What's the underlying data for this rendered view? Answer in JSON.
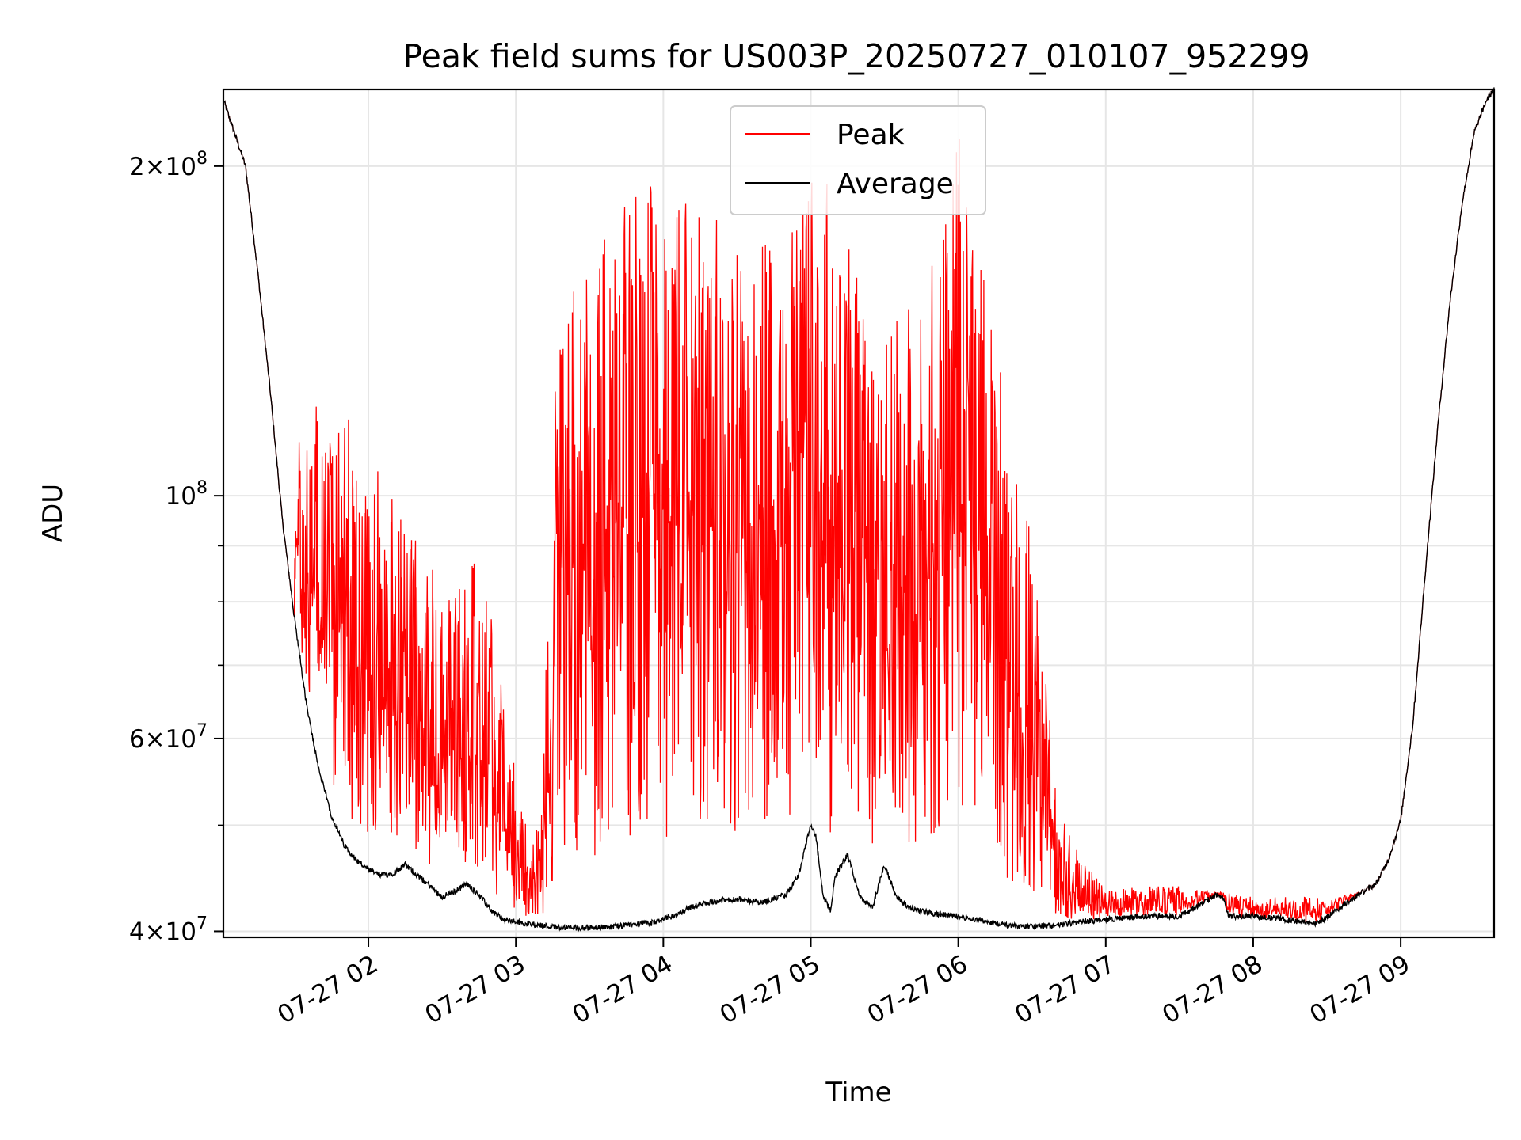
{
  "chart_data": {
    "type": "line",
    "title": "Peak field sums for US003P_20250727_010107_952299",
    "xlabel": "Time",
    "ylabel": "ADU",
    "x_range": [
      "2025-07-27 01:01",
      "2025-07-27 09:38"
    ],
    "y_scale": "log",
    "ylim": [
      39500000,
      235000000
    ],
    "grid": true,
    "legend": {
      "placement": "top-center",
      "entries": [
        "Peak",
        "Average"
      ]
    },
    "x_ticks": [
      "07-27 02",
      "07-27 03",
      "07-27 04",
      "07-27 05",
      "07-27 06",
      "07-27 07",
      "07-27 08",
      "07-27 09"
    ],
    "y_major_ticks": [
      {
        "value": 40000000,
        "mantissa": "4",
        "exponent": "7"
      },
      {
        "value": 60000000,
        "mantissa": "6",
        "exponent": "7"
      },
      {
        "value": 100000000,
        "mantissa": "",
        "exponent": "8"
      },
      {
        "value": 200000000,
        "mantissa": "2",
        "exponent": "8"
      }
    ],
    "y_minor_ticks": [
      50000000,
      70000000,
      80000000,
      90000000
    ],
    "series": [
      {
        "name": "Average",
        "color": "#000000",
        "x": [
          "01:01",
          "01:10",
          "01:15",
          "01:20",
          "01:25",
          "01:30",
          "01:35",
          "01:40",
          "01:45",
          "01:50",
          "01:55",
          "02:00",
          "02:05",
          "02:10",
          "02:15",
          "02:20",
          "02:25",
          "02:30",
          "02:35",
          "02:40",
          "02:45",
          "02:50",
          "02:55",
          "03:00",
          "03:10",
          "03:20",
          "03:30",
          "03:40",
          "03:45",
          "03:50",
          "03:55",
          "04:00",
          "04:05",
          "04:10",
          "04:15",
          "04:20",
          "04:30",
          "04:40",
          "04:50",
          "04:55",
          "05:00",
          "05:02",
          "05:05",
          "05:08",
          "05:10",
          "05:15",
          "05:20",
          "05:25",
          "05:30",
          "05:35",
          "05:40",
          "05:50",
          "06:00",
          "06:10",
          "06:20",
          "06:30",
          "06:40",
          "06:50",
          "07:00",
          "07:10",
          "07:20",
          "07:30",
          "07:40",
          "07:45",
          "07:48",
          "07:50",
          "07:55",
          "08:00",
          "08:10",
          "08:20",
          "08:25",
          "08:30",
          "08:35",
          "08:40",
          "08:45",
          "08:50",
          "08:55",
          "09:00",
          "09:05",
          "09:10",
          "09:15",
          "09:20",
          "09:25",
          "09:30",
          "09:35",
          "09:38"
        ],
        "y": [
          230000000,
          200000000,
          160000000,
          125000000,
          95000000,
          77000000,
          64000000,
          56000000,
          51000000,
          48000000,
          46500000,
          45500000,
          45000000,
          45200000,
          46000000,
          45000000,
          44000000,
          43000000,
          43500000,
          44200000,
          43200000,
          41800000,
          41000000,
          40800000,
          40500000,
          40300000,
          40300000,
          40400000,
          40500000,
          40700000,
          40700000,
          41000000,
          41400000,
          42000000,
          42300000,
          42600000,
          42800000,
          42500000,
          43200000,
          45000000,
          50000000,
          49000000,
          43000000,
          41800000,
          45000000,
          47000000,
          43000000,
          42000000,
          46000000,
          43000000,
          42000000,
          41500000,
          41300000,
          40900000,
          40500000,
          40400000,
          40500000,
          40800000,
          41000000,
          41200000,
          41300000,
          41300000,
          42500000,
          43200000,
          42800000,
          41300000,
          41300000,
          41300000,
          41100000,
          40800000,
          40600000,
          41200000,
          42000000,
          42800000,
          43500000,
          44200000,
          46500000,
          50500000,
          62000000,
          85000000,
          115000000,
          150000000,
          185000000,
          215000000,
          230000000,
          235000000
        ]
      },
      {
        "name": "Peak",
        "color": "#ff0000",
        "envelope_x": [
          "01:30",
          "01:45",
          "02:00",
          "02:15",
          "02:30",
          "02:45",
          "03:00",
          "03:10",
          "03:20",
          "03:30",
          "03:45",
          "04:00",
          "04:15",
          "04:30",
          "04:45",
          "05:00",
          "05:15",
          "05:30",
          "05:45",
          "06:00",
          "06:15",
          "06:30",
          "06:40",
          "06:50",
          "07:00",
          "07:30",
          "08:00",
          "08:30",
          "08:45"
        ],
        "envelope_y": [
          122000000,
          125000000,
          110000000,
          96000000,
          83000000,
          90000000,
          56000000,
          49000000,
          175000000,
          160000000,
          190000000,
          195000000,
          190000000,
          175000000,
          170000000,
          200000000,
          185000000,
          140000000,
          155000000,
          215000000,
          140000000,
          90000000,
          52000000,
          47000000,
          44000000,
          44000000,
          43000000,
          43000000,
          43500000
        ]
      }
    ]
  }
}
